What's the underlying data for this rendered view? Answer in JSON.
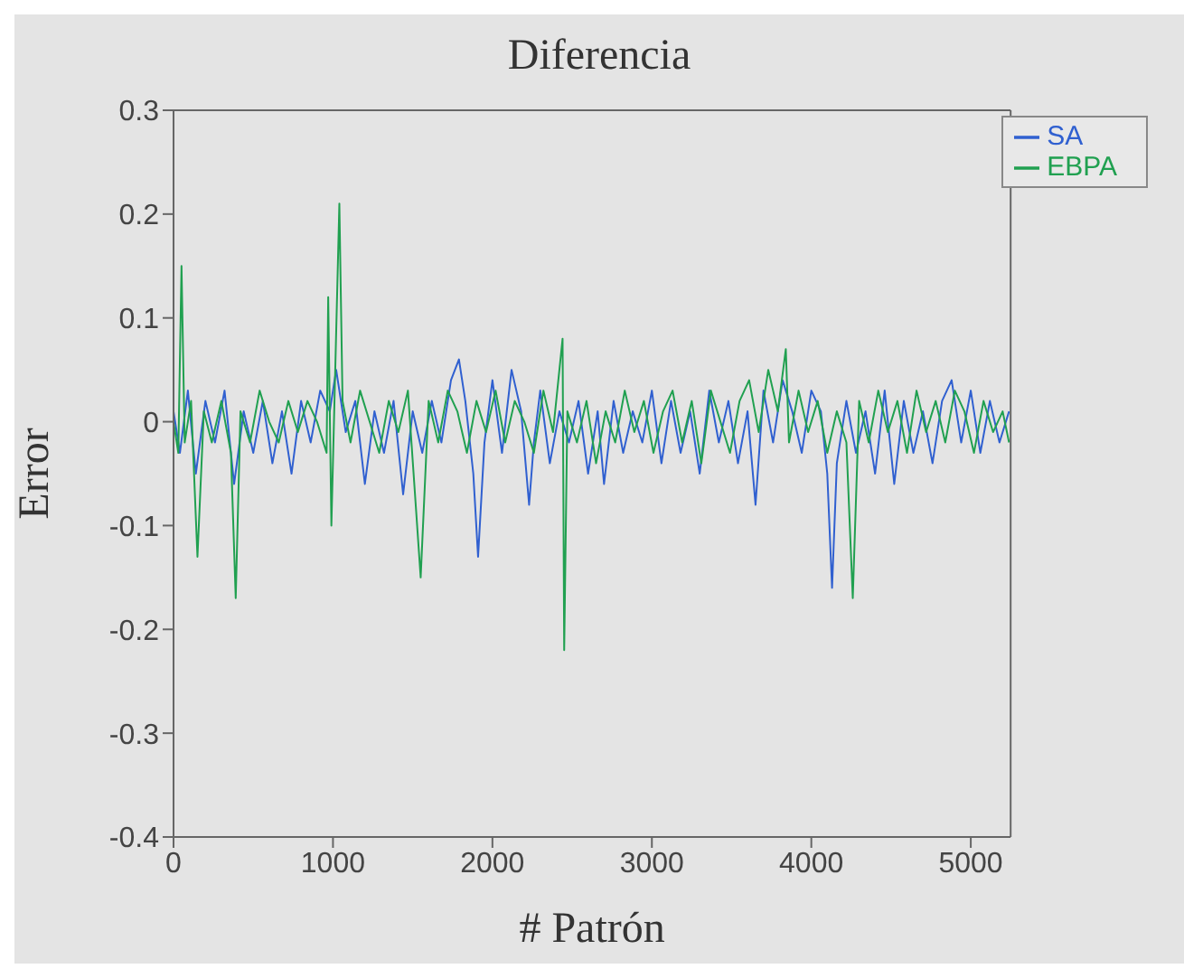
{
  "chart_data": {
    "type": "line",
    "title": "Diferencia",
    "xlabel": "# Patrón",
    "ylabel": "Error",
    "xlim": [
      0,
      5250
    ],
    "xticks": [
      0,
      1000,
      2000,
      3000,
      4000,
      5000
    ],
    "ylim": [
      -0.4,
      0.3
    ],
    "yticks": [
      -0.4,
      -0.3,
      -0.2,
      -0.1,
      0,
      0.1,
      0.2,
      0.3
    ],
    "grid": false,
    "legend": "top right",
    "marker": "none",
    "line_style": "solid",
    "series": [
      {
        "name": "SA",
        "color": "#3060d0",
        "x": [
          0,
          40,
          90,
          140,
          200,
          260,
          320,
          380,
          440,
          500,
          560,
          620,
          680,
          740,
          800,
          860,
          920,
          980,
          1020,
          1080,
          1140,
          1200,
          1260,
          1320,
          1380,
          1440,
          1500,
          1560,
          1620,
          1680,
          1740,
          1790,
          1830,
          1880,
          1910,
          1950,
          2000,
          2060,
          2120,
          2180,
          2230,
          2260,
          2300,
          2360,
          2420,
          2480,
          2540,
          2600,
          2660,
          2700,
          2760,
          2820,
          2880,
          2940,
          3000,
          3060,
          3120,
          3180,
          3240,
          3300,
          3360,
          3420,
          3480,
          3540,
          3600,
          3650,
          3700,
          3760,
          3820,
          3880,
          3940,
          4000,
          4060,
          4100,
          4130,
          4160,
          4220,
          4280,
          4340,
          4400,
          4460,
          4520,
          4580,
          4640,
          4700,
          4760,
          4820,
          4880,
          4940,
          5000,
          5060,
          5120,
          5180,
          5240
        ],
        "values": [
          0.01,
          -0.03,
          0.03,
          -0.05,
          0.02,
          -0.02,
          0.03,
          -0.06,
          0.01,
          -0.03,
          0.02,
          -0.04,
          0.01,
          -0.05,
          0.02,
          -0.02,
          0.03,
          0.01,
          0.05,
          -0.01,
          0.02,
          -0.06,
          0.01,
          -0.03,
          0.02,
          -0.07,
          0.01,
          -0.03,
          0.02,
          -0.02,
          0.04,
          0.06,
          0.02,
          -0.05,
          -0.13,
          -0.02,
          0.04,
          -0.03,
          0.05,
          0.01,
          -0.08,
          -0.02,
          0.03,
          -0.04,
          0.01,
          -0.02,
          0.02,
          -0.05,
          0.01,
          -0.06,
          0.02,
          -0.03,
          0.01,
          -0.02,
          0.03,
          -0.04,
          0.02,
          -0.03,
          0.01,
          -0.05,
          0.03,
          -0.02,
          0.02,
          -0.04,
          0.01,
          -0.08,
          0.03,
          -0.02,
          0.04,
          0.01,
          -0.03,
          0.03,
          0.01,
          -0.05,
          -0.16,
          -0.04,
          0.02,
          -0.03,
          0.01,
          -0.05,
          0.03,
          -0.06,
          0.02,
          -0.03,
          0.01,
          -0.04,
          0.02,
          0.04,
          -0.02,
          0.03,
          -0.03,
          0.02,
          -0.02,
          0.01
        ]
      },
      {
        "name": "EBPA",
        "color": "#20a050",
        "x": [
          0,
          30,
          50,
          70,
          110,
          150,
          190,
          240,
          300,
          360,
          390,
          420,
          480,
          540,
          600,
          660,
          720,
          780,
          840,
          900,
          960,
          970,
          990,
          1040,
          1060,
          1110,
          1170,
          1230,
          1290,
          1350,
          1410,
          1470,
          1550,
          1600,
          1660,
          1720,
          1780,
          1840,
          1900,
          1960,
          2020,
          2080,
          2140,
          2200,
          2260,
          2320,
          2380,
          2440,
          2450,
          2470,
          2530,
          2590,
          2650,
          2710,
          2770,
          2830,
          2890,
          2950,
          3010,
          3070,
          3130,
          3190,
          3250,
          3310,
          3370,
          3430,
          3490,
          3550,
          3610,
          3670,
          3730,
          3790,
          3840,
          3860,
          3920,
          3980,
          4040,
          4100,
          4160,
          4220,
          4260,
          4300,
          4360,
          4420,
          4480,
          4540,
          4600,
          4660,
          4720,
          4780,
          4840,
          4900,
          4960,
          5020,
          5080,
          5140,
          5200,
          5240
        ],
        "values": [
          0.0,
          -0.03,
          0.15,
          -0.02,
          0.02,
          -0.13,
          0.01,
          -0.02,
          0.02,
          -0.03,
          -0.17,
          0.01,
          -0.02,
          0.03,
          0.0,
          -0.02,
          0.02,
          -0.01,
          0.02,
          0.0,
          -0.03,
          0.12,
          -0.1,
          0.21,
          0.02,
          -0.02,
          0.03,
          0.0,
          -0.03,
          0.02,
          -0.01,
          0.03,
          -0.15,
          0.02,
          -0.02,
          0.03,
          0.01,
          -0.03,
          0.02,
          -0.01,
          0.03,
          -0.02,
          0.02,
          0.0,
          -0.03,
          0.03,
          -0.01,
          0.08,
          -0.22,
          0.01,
          -0.02,
          0.02,
          -0.04,
          0.01,
          -0.02,
          0.03,
          -0.01,
          0.02,
          -0.03,
          0.01,
          0.03,
          -0.02,
          0.02,
          -0.04,
          0.03,
          0.0,
          -0.03,
          0.02,
          0.04,
          -0.01,
          0.05,
          0.01,
          0.07,
          -0.02,
          0.03,
          -0.01,
          0.02,
          -0.03,
          0.01,
          -0.02,
          -0.17,
          0.02,
          -0.02,
          0.03,
          -0.01,
          0.02,
          -0.03,
          0.03,
          -0.01,
          0.02,
          -0.02,
          0.03,
          0.01,
          -0.03,
          0.02,
          -0.01,
          0.01,
          -0.02
        ]
      }
    ]
  }
}
